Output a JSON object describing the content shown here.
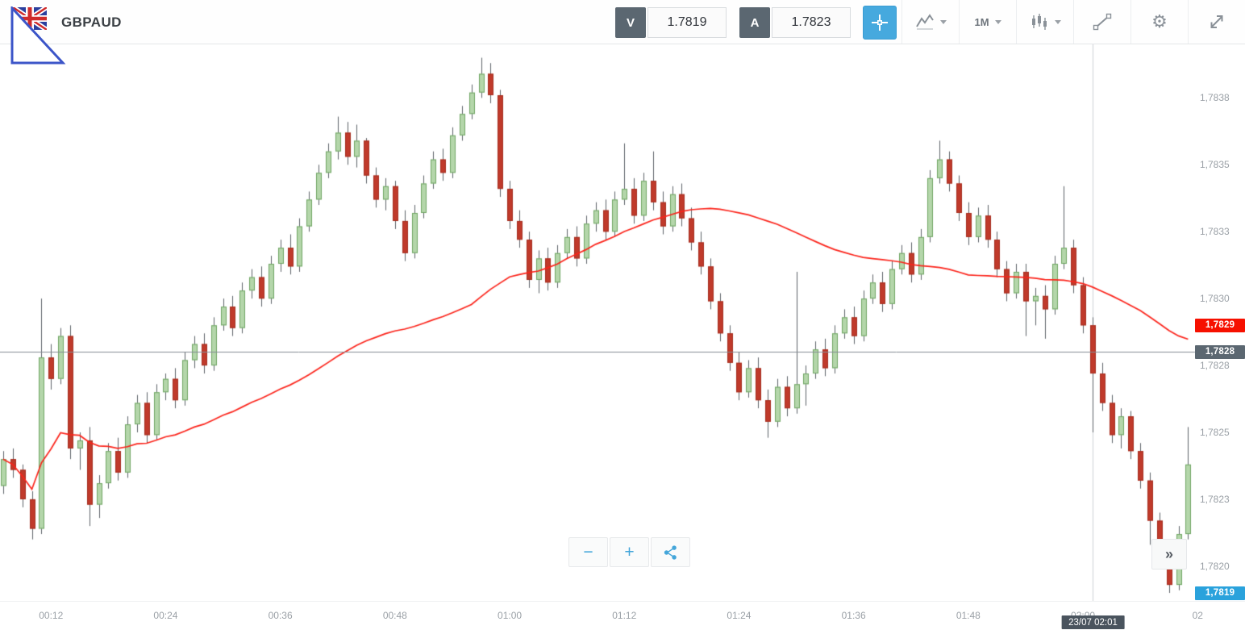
{
  "header": {
    "symbol": "GBPAUD",
    "sell_label": "V",
    "sell_price": "1.7819",
    "buy_label": "A",
    "buy_price": "1.7823",
    "timeframe": "1M"
  },
  "icons": {
    "gear": "⚙",
    "collapse": "»",
    "zoom_out": "−",
    "zoom_in": "+"
  },
  "chart_data": {
    "type": "candlestick",
    "symbol": "GBPAUD",
    "timeframe": "1M",
    "price_base": 1.78,
    "pip_unit": 0.0001,
    "ylim_pips": [
      18.7,
      39.5
    ],
    "x_axis_start_time": "00:07",
    "interval_minutes": 1,
    "y_ticks": [
      {
        "pips": 37.5,
        "label": "1,7838"
      },
      {
        "pips": 35.0,
        "label": "1,7835"
      },
      {
        "pips": 32.5,
        "label": "1,7833"
      },
      {
        "pips": 30.0,
        "label": "1,7830"
      },
      {
        "pips": 27.5,
        "label": "1,7828"
      },
      {
        "pips": 25.0,
        "label": "1,7825"
      },
      {
        "pips": 22.5,
        "label": "1,7823"
      },
      {
        "pips": 20.0,
        "label": "1,7820"
      }
    ],
    "x_ticks": [
      {
        "t": 5,
        "label": "00:12"
      },
      {
        "t": 17,
        "label": "00:24"
      },
      {
        "t": 29,
        "label": "00:36"
      },
      {
        "t": 41,
        "label": "00:48"
      },
      {
        "t": 53,
        "label": "01:00"
      },
      {
        "t": 65,
        "label": "01:12"
      },
      {
        "t": 77,
        "label": "01:24"
      },
      {
        "t": 89,
        "label": "01:36"
      },
      {
        "t": 101,
        "label": "01:48"
      },
      {
        "t": 113,
        "label": "02:00"
      },
      {
        "t": 125,
        "label": "02"
      }
    ],
    "candles_pips": [
      [
        23.0,
        24.3,
        22.7,
        24.0
      ],
      [
        24.0,
        24.4,
        23.3,
        23.6
      ],
      [
        23.6,
        23.8,
        22.2,
        22.5
      ],
      [
        22.5,
        22.8,
        21.0,
        21.4
      ],
      [
        21.4,
        30.0,
        21.2,
        27.8
      ],
      [
        27.8,
        28.3,
        26.6,
        27.0
      ],
      [
        27.0,
        28.9,
        26.8,
        28.6
      ],
      [
        28.6,
        29.0,
        24.0,
        24.4
      ],
      [
        24.4,
        25.0,
        23.6,
        24.7
      ],
      [
        24.7,
        25.2,
        21.5,
        22.3
      ],
      [
        22.3,
        23.4,
        21.8,
        23.1
      ],
      [
        23.1,
        24.6,
        22.9,
        24.3
      ],
      [
        24.3,
        24.8,
        23.2,
        23.5
      ],
      [
        23.5,
        25.6,
        23.3,
        25.3
      ],
      [
        25.3,
        26.4,
        25.0,
        26.1
      ],
      [
        26.1,
        26.5,
        24.6,
        24.9
      ],
      [
        24.9,
        26.8,
        24.7,
        26.5
      ],
      [
        26.5,
        27.2,
        26.2,
        27.0
      ],
      [
        27.0,
        27.4,
        25.9,
        26.2
      ],
      [
        26.2,
        28.0,
        26.0,
        27.7
      ],
      [
        27.7,
        28.6,
        27.4,
        28.3
      ],
      [
        28.3,
        28.7,
        27.2,
        27.5
      ],
      [
        27.5,
        29.3,
        27.3,
        29.0
      ],
      [
        29.0,
        30.0,
        28.8,
        29.7
      ],
      [
        29.7,
        30.1,
        28.6,
        28.9
      ],
      [
        28.9,
        30.6,
        28.7,
        30.3
      ],
      [
        30.3,
        31.1,
        30.0,
        30.8
      ],
      [
        30.8,
        31.2,
        29.7,
        30.0
      ],
      [
        30.0,
        31.6,
        29.8,
        31.3
      ],
      [
        31.3,
        32.2,
        31.0,
        31.9
      ],
      [
        31.9,
        32.4,
        30.9,
        31.2
      ],
      [
        31.2,
        33.0,
        31.0,
        32.7
      ],
      [
        32.7,
        34.0,
        32.5,
        33.7
      ],
      [
        33.7,
        35.0,
        33.5,
        34.7
      ],
      [
        34.7,
        35.8,
        34.5,
        35.5
      ],
      [
        35.5,
        36.8,
        35.2,
        36.2
      ],
      [
        36.2,
        36.6,
        35.0,
        35.3
      ],
      [
        35.3,
        36.5,
        34.9,
        35.9
      ],
      [
        35.9,
        36.0,
        34.3,
        34.6
      ],
      [
        34.6,
        34.9,
        33.4,
        33.7
      ],
      [
        33.7,
        34.5,
        33.3,
        34.2
      ],
      [
        34.2,
        34.4,
        32.6,
        32.9
      ],
      [
        32.9,
        33.3,
        31.4,
        31.7
      ],
      [
        31.7,
        33.5,
        31.5,
        33.2
      ],
      [
        33.2,
        34.6,
        33.0,
        34.3
      ],
      [
        34.3,
        35.5,
        34.1,
        35.2
      ],
      [
        35.2,
        35.6,
        34.4,
        34.7
      ],
      [
        34.7,
        36.4,
        34.5,
        36.1
      ],
      [
        36.1,
        37.2,
        35.9,
        36.9
      ],
      [
        36.9,
        38.0,
        36.7,
        37.7
      ],
      [
        37.7,
        39.0,
        37.5,
        38.4
      ],
      [
        38.4,
        38.8,
        37.3,
        37.6
      ],
      [
        37.6,
        37.8,
        33.8,
        34.1
      ],
      [
        34.1,
        34.4,
        32.6,
        32.9
      ],
      [
        32.9,
        33.3,
        31.9,
        32.2
      ],
      [
        32.2,
        32.5,
        30.4,
        30.7
      ],
      [
        30.7,
        31.8,
        30.2,
        31.5
      ],
      [
        31.5,
        31.9,
        30.3,
        30.6
      ],
      [
        30.6,
        32.0,
        30.4,
        31.7
      ],
      [
        31.7,
        32.6,
        31.5,
        32.3
      ],
      [
        32.3,
        32.7,
        31.2,
        31.5
      ],
      [
        31.5,
        33.1,
        31.3,
        32.8
      ],
      [
        32.8,
        33.6,
        32.5,
        33.3
      ],
      [
        33.3,
        33.7,
        32.2,
        32.5
      ],
      [
        32.5,
        34.0,
        32.3,
        33.7
      ],
      [
        33.7,
        35.8,
        33.5,
        34.1
      ],
      [
        34.1,
        34.5,
        32.8,
        33.1
      ],
      [
        33.1,
        34.7,
        32.9,
        34.4
      ],
      [
        34.4,
        35.5,
        33.3,
        33.6
      ],
      [
        33.6,
        34.0,
        32.4,
        32.7
      ],
      [
        32.7,
        34.2,
        32.5,
        33.9
      ],
      [
        33.9,
        34.3,
        32.7,
        33.0
      ],
      [
        33.0,
        33.4,
        31.8,
        32.1
      ],
      [
        32.1,
        32.5,
        30.9,
        31.2
      ],
      [
        31.2,
        31.5,
        29.6,
        29.9
      ],
      [
        29.9,
        30.2,
        28.4,
        28.7
      ],
      [
        28.7,
        29.0,
        27.3,
        27.6
      ],
      [
        27.6,
        28.0,
        26.2,
        26.5
      ],
      [
        26.5,
        27.7,
        26.3,
        27.4
      ],
      [
        27.4,
        27.8,
        25.9,
        26.2
      ],
      [
        26.2,
        26.6,
        24.8,
        25.4
      ],
      [
        25.4,
        27.0,
        25.2,
        26.7
      ],
      [
        26.7,
        27.1,
        25.6,
        25.9
      ],
      [
        25.9,
        31.0,
        25.7,
        26.8
      ],
      [
        26.8,
        27.5,
        26.0,
        27.2
      ],
      [
        27.2,
        28.4,
        27.0,
        28.1
      ],
      [
        28.1,
        28.5,
        27.1,
        27.4
      ],
      [
        27.4,
        29.0,
        27.2,
        28.7
      ],
      [
        28.7,
        29.6,
        28.5,
        29.3
      ],
      [
        29.3,
        29.7,
        28.3,
        28.6
      ],
      [
        28.6,
        30.3,
        28.4,
        30.0
      ],
      [
        30.0,
        30.9,
        29.8,
        30.6
      ],
      [
        30.6,
        31.0,
        29.5,
        29.8
      ],
      [
        29.8,
        31.4,
        29.6,
        31.1
      ],
      [
        31.1,
        32.0,
        30.9,
        31.7
      ],
      [
        31.7,
        32.1,
        30.6,
        30.9
      ],
      [
        30.9,
        32.6,
        30.7,
        32.3
      ],
      [
        32.3,
        34.8,
        32.1,
        34.5
      ],
      [
        34.5,
        35.9,
        34.3,
        35.2
      ],
      [
        35.2,
        35.5,
        34.0,
        34.3
      ],
      [
        34.3,
        34.6,
        32.9,
        33.2
      ],
      [
        33.2,
        33.6,
        32.0,
        32.3
      ],
      [
        32.3,
        33.4,
        32.1,
        33.1
      ],
      [
        33.1,
        33.5,
        31.9,
        32.2
      ],
      [
        32.2,
        32.5,
        30.8,
        31.1
      ],
      [
        31.1,
        31.4,
        29.9,
        30.2
      ],
      [
        30.2,
        31.3,
        30.0,
        31.0
      ],
      [
        31.0,
        31.3,
        28.6,
        29.9
      ],
      [
        29.9,
        30.4,
        29.0,
        30.1
      ],
      [
        30.1,
        30.5,
        28.5,
        29.6
      ],
      [
        29.6,
        31.6,
        29.4,
        31.3
      ],
      [
        31.3,
        34.2,
        31.1,
        31.9
      ],
      [
        31.9,
        32.2,
        30.2,
        30.5
      ],
      [
        30.5,
        30.8,
        28.7,
        29.0
      ],
      [
        29.0,
        29.3,
        25.0,
        27.2
      ],
      [
        27.2,
        27.6,
        25.8,
        26.1
      ],
      [
        26.1,
        26.4,
        24.6,
        24.9
      ],
      [
        24.9,
        25.9,
        24.4,
        25.6
      ],
      [
        25.6,
        25.8,
        24.0,
        24.3
      ],
      [
        24.3,
        24.6,
        22.9,
        23.2
      ],
      [
        23.2,
        23.5,
        20.8,
        21.7
      ],
      [
        21.7,
        22.0,
        20.3,
        20.6
      ],
      [
        20.6,
        20.9,
        19.0,
        19.3
      ],
      [
        19.3,
        21.5,
        19.1,
        21.2
      ],
      [
        21.2,
        25.2,
        21.0,
        23.8
      ]
    ],
    "ma": {
      "type": "sma",
      "period": 50,
      "color": "#fb231a"
    },
    "crosshair": {
      "t": 114,
      "pips": 28.0,
      "price_label": "1,7828",
      "time_label": "23/07 02:01"
    },
    "price_markers": [
      {
        "name": "indicator-price",
        "pips": 29.0,
        "label": "1,7829",
        "color": "#f61000"
      },
      {
        "name": "crosshair-price",
        "pips": 28.0,
        "label": "1,7828",
        "color": "#5b6771"
      },
      {
        "name": "bid-price",
        "pips": 19.0,
        "label": "1,7819",
        "color": "#2aa2dc"
      }
    ],
    "colors": {
      "up_fill": "#b4d6aa",
      "up_stroke": "#6fa563",
      "down_fill": "#c03a2b",
      "down_stroke": "#a52d1e",
      "wick": "#5c6268",
      "crosshair_v": "#ccd1d5",
      "crosshair_h": "#868d94"
    }
  }
}
